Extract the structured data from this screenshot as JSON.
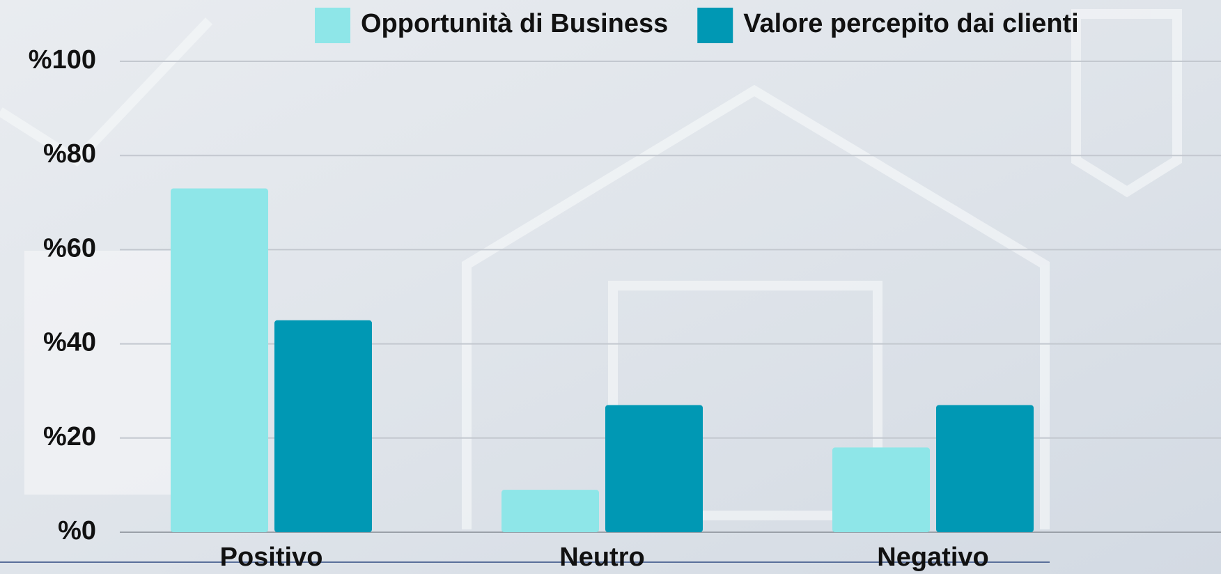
{
  "chart_data": {
    "type": "bar",
    "categories": [
      "Positivo",
      "Neutro",
      "Negativo"
    ],
    "series": [
      {
        "name": "Opportunità di Business",
        "color": "#8ee6e8",
        "values": [
          73,
          9,
          18
        ]
      },
      {
        "name": "Valore percepito dai clienti",
        "color": "#0098b4",
        "values": [
          45,
          27,
          27
        ]
      }
    ],
    "ylim": [
      0,
      100
    ],
    "yticks": [
      {
        "value": 0,
        "label": "%0"
      },
      {
        "value": 20,
        "label": "%20"
      },
      {
        "value": 40,
        "label": "%40"
      },
      {
        "value": 60,
        "label": "%60"
      },
      {
        "value": 80,
        "label": "%80"
      },
      {
        "value": 100,
        "label": "%100"
      }
    ],
    "grid": true,
    "legend": "top"
  }
}
